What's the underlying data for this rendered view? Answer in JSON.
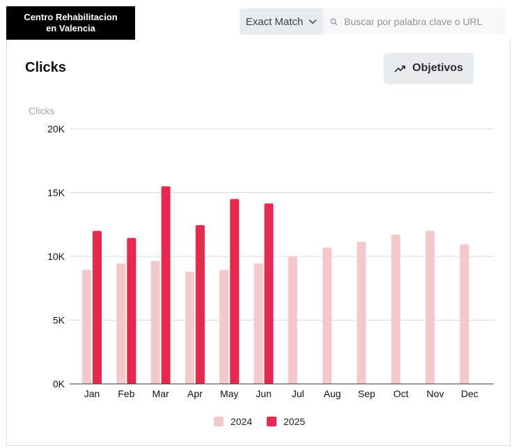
{
  "site_name": [
    "Centro Rehabilitacion",
    "en Valencia"
  ],
  "search": {
    "match_type": "Exact Match",
    "placeholder": "Buscar por palabra clave o URL"
  },
  "card": {
    "title": "Clicks",
    "goals_button": "Objetivos"
  },
  "icons": {
    "match_select": "chevron-down-icon",
    "search": "search-icon",
    "goals": "trend-up-icon"
  },
  "colors": {
    "series_2024": "#f5c9c9",
    "series_2025": "#e8294e",
    "grid": "#d9d9d9",
    "axis": "#333333"
  },
  "chart_data": {
    "type": "bar",
    "ylabel": "Clicks",
    "xlabel": "",
    "categories": [
      "Jan",
      "Feb",
      "Mar",
      "Apr",
      "May",
      "Jun",
      "Jul",
      "Aug",
      "Sep",
      "Oct",
      "Nov",
      "Dec"
    ],
    "ylim": [
      0,
      20000
    ],
    "yticks": [
      0,
      5000,
      10000,
      15000,
      20000
    ],
    "ytick_labels": [
      "0K",
      "5K",
      "10K",
      "15K",
      "20K"
    ],
    "grid": true,
    "legend_position": "bottom-center",
    "series": [
      {
        "name": "2024",
        "color": "#f5c9c9",
        "values": [
          8950,
          9450,
          9650,
          8800,
          8950,
          9450,
          10000,
          10700,
          11150,
          11700,
          12000,
          10950
        ]
      },
      {
        "name": "2025",
        "color": "#e8294e",
        "values": [
          12000,
          11450,
          15500,
          12450,
          14500,
          14150,
          null,
          null,
          null,
          null,
          null,
          null
        ]
      }
    ]
  }
}
